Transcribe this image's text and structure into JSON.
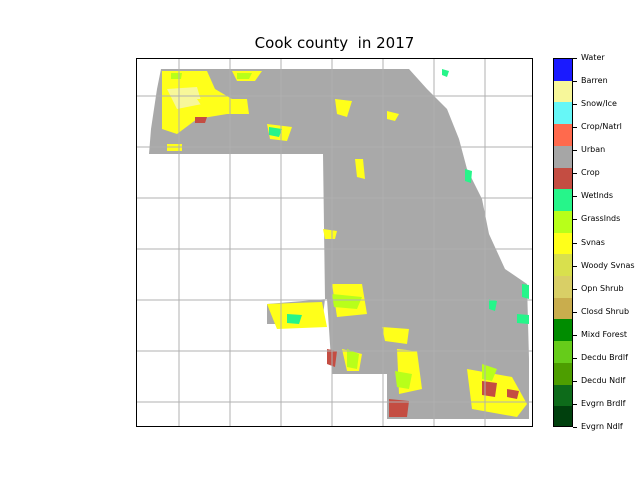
{
  "map": {
    "title": "Cook county  in 2017",
    "grid": true,
    "region_color": "#a9a9a9",
    "grid_color": "#b0b0b0"
  },
  "legend": {
    "placement": "right",
    "classes": [
      {
        "label": "Water",
        "color": "#1a1aff"
      },
      {
        "label": "Barren",
        "color": "#f7f79a"
      },
      {
        "label": "Snow/Ice",
        "color": "#66f7f7"
      },
      {
        "label": "Crop/Natrl",
        "color": "#ff6a4d"
      },
      {
        "label": "Urban",
        "color": "#a6a6a6"
      },
      {
        "label": "Crop",
        "color": "#c44d42"
      },
      {
        "label": "Wetlnds",
        "color": "#26f58a"
      },
      {
        "label": "Grasslnds",
        "color": "#b8ff1a"
      },
      {
        "label": "Svnas",
        "color": "#ffff1a"
      },
      {
        "label": "Woody Svnas",
        "color": "#d9e04d"
      },
      {
        "label": "Opn Shrub",
        "color": "#d9cf66"
      },
      {
        "label": "Closd Shrub",
        "color": "#c9ad4d"
      },
      {
        "label": "Mixd Forest",
        "color": "#008c00"
      },
      {
        "label": "Decdu Brdlf",
        "color": "#66cc1a"
      },
      {
        "label": "Decdu Ndlf",
        "color": "#4d9e00"
      },
      {
        "label": "Evgrn Brdlf",
        "color": "#0d6b1a"
      },
      {
        "label": "Evgrn Ndlf",
        "color": "#00400d"
      }
    ]
  }
}
